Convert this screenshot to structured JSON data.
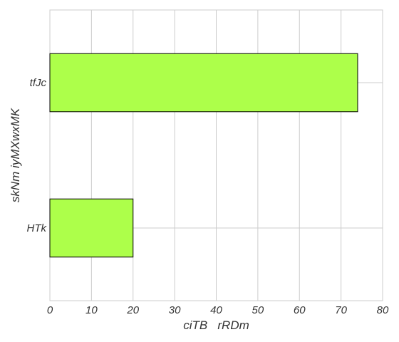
{
  "chart_data": {
    "type": "bar",
    "orientation": "horizontal",
    "title": "",
    "xlabel": "ciTB   rRDm",
    "ylabel": "skNm iyMXwxMK",
    "categories": [
      "HTk",
      "tfJc"
    ],
    "values": [
      20,
      74
    ],
    "xlim": [
      0,
      80
    ],
    "xticks": [
      0,
      10,
      20,
      30,
      40,
      50,
      60,
      70,
      80
    ],
    "grid": true,
    "legend": "none",
    "colors": {
      "bar": "#adff4a",
      "bar_edge": "#000000",
      "grid": "#cccccc",
      "spine": "#cccccc",
      "text": "#333333"
    }
  }
}
